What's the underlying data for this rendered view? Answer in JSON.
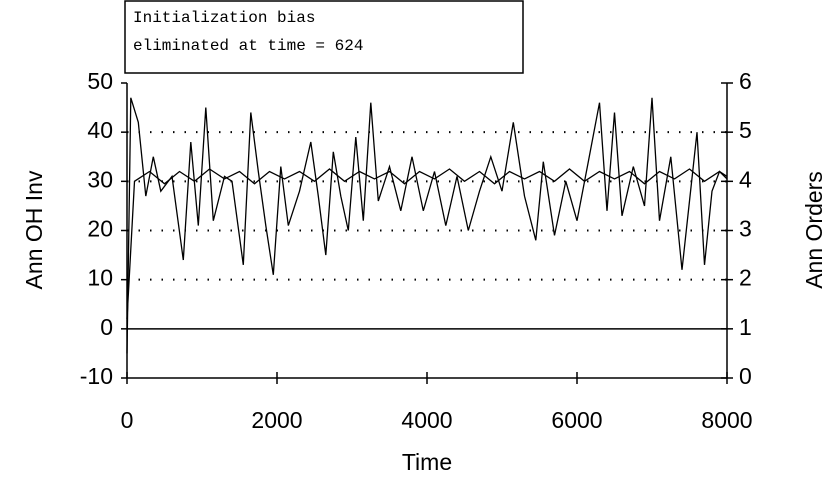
{
  "chart_data": {
    "type": "line",
    "annotation": [
      "Initialization bias",
      "eliminated at time = 624"
    ],
    "xlabel": "Time",
    "ylabel": "Ann OH Inv",
    "y2label": "Ann Orders",
    "xlim": [
      0,
      8000
    ],
    "xticks": [
      0,
      2000,
      4000,
      6000,
      8000
    ],
    "ylim": [
      -10,
      50
    ],
    "yticks": [
      -10,
      0,
      10,
      20,
      30,
      40,
      50
    ],
    "y2lim": [
      0,
      6
    ],
    "y2ticks": [
      0,
      1,
      2,
      3,
      4,
      5,
      6
    ],
    "grid": true,
    "color": "#000000",
    "series": [
      {
        "color": "#000000",
        "axis": "y",
        "x": [
          0,
          50,
          150,
          250,
          350,
          450,
          600,
          750,
          850,
          950,
          1050,
          1150,
          1300,
          1400,
          1550,
          1650,
          1750,
          1850,
          1950,
          2050,
          2150,
          2300,
          2450,
          2550,
          2650,
          2750,
          2850,
          2950,
          3050,
          3150,
          3250,
          3350,
          3500,
          3650,
          3800,
          3950,
          4100,
          4250,
          4400,
          4550,
          4700,
          4850,
          5000,
          5150,
          5300,
          5450,
          5550,
          5700,
          5850,
          6000,
          6150,
          6300,
          6400,
          6500,
          6600,
          6750,
          6900,
          7000,
          7100,
          7250,
          7400,
          7500,
          7600,
          7700,
          7800,
          7900,
          8000
        ],
        "values": [
          -5,
          47,
          42,
          27,
          35,
          28,
          31,
          14,
          38,
          21,
          45,
          22,
          31,
          30,
          13,
          44,
          32,
          21,
          11,
          33,
          21,
          28,
          38,
          27,
          15,
          36,
          27,
          20,
          39,
          22,
          46,
          26,
          33,
          24,
          35,
          24,
          32,
          21,
          31,
          20,
          28,
          35,
          28,
          42,
          27,
          18,
          34,
          19,
          30,
          22,
          34,
          46,
          24,
          44,
          23,
          33,
          25,
          47,
          22,
          35,
          12,
          26,
          40,
          13,
          28,
          32,
          31
        ]
      },
      {
        "color": "#000000",
        "axis": "y2",
        "x": [
          0,
          100,
          300,
          500,
          700,
          900,
          1100,
          1300,
          1500,
          1700,
          1900,
          2100,
          2300,
          2500,
          2700,
          2900,
          3100,
          3300,
          3500,
          3700,
          3900,
          4100,
          4300,
          4500,
          4700,
          4900,
          5100,
          5300,
          5500,
          5700,
          5900,
          6100,
          6300,
          6500,
          6700,
          6900,
          7100,
          7300,
          7500,
          7700,
          7900,
          8000
        ],
        "values": [
          1.2,
          4.0,
          4.2,
          3.95,
          4.2,
          4.0,
          4.25,
          4.05,
          4.2,
          3.95,
          4.2,
          4.05,
          4.2,
          4.0,
          4.25,
          4.0,
          4.2,
          4.05,
          4.2,
          3.95,
          4.2,
          4.05,
          4.25,
          4.0,
          4.2,
          3.95,
          4.2,
          4.05,
          4.2,
          4.0,
          4.25,
          4.0,
          4.2,
          4.05,
          4.2,
          3.95,
          4.2,
          4.05,
          4.25,
          4.0,
          4.2,
          4.05
        ]
      }
    ]
  }
}
